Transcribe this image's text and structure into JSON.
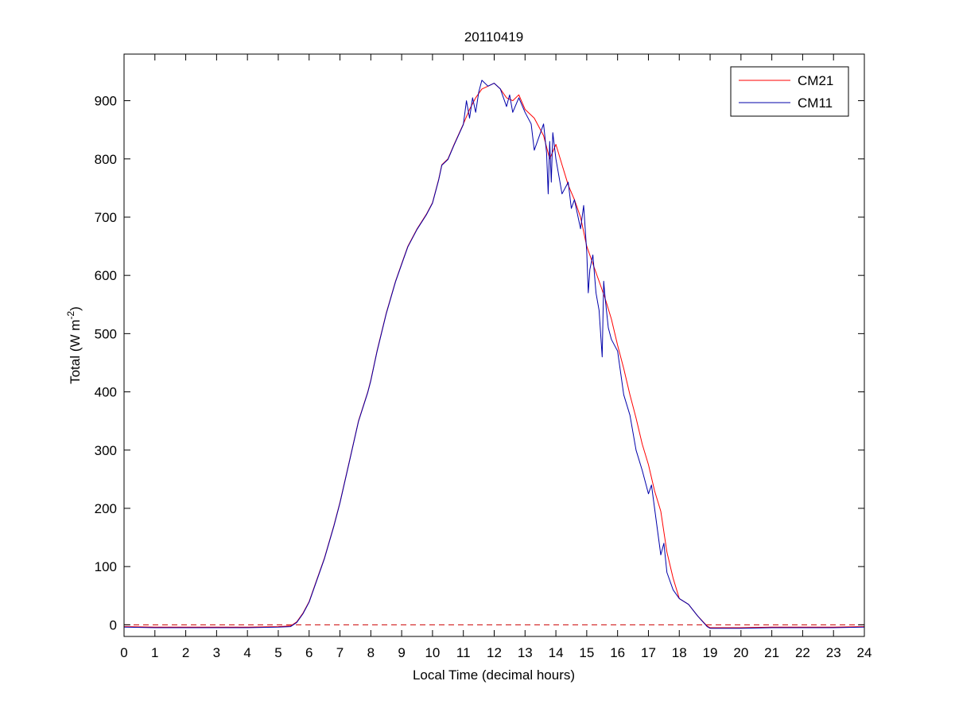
{
  "chart_data": {
    "type": "line",
    "title": "20110419",
    "xlabel": "Local Time (decimal hours)",
    "ylabel": {
      "main": "Total (W m",
      "superscript": "-2",
      "close": ")"
    },
    "xlim": [
      0,
      24
    ],
    "ylim": [
      -20,
      980
    ],
    "xticks": [
      0,
      1,
      2,
      3,
      4,
      5,
      6,
      7,
      8,
      9,
      10,
      11,
      12,
      13,
      14,
      15,
      16,
      17,
      18,
      19,
      20,
      21,
      22,
      23,
      24
    ],
    "yticks": [
      0,
      100,
      200,
      300,
      400,
      500,
      600,
      700,
      800,
      900
    ],
    "grid": false,
    "legend": {
      "position": "top-right",
      "entries": [
        "CM21",
        "CM11"
      ]
    },
    "reference_line": {
      "y": 0,
      "style": "dashed",
      "color": "#cc0000"
    },
    "series": [
      {
        "name": "CM21",
        "color": "#ff0000",
        "x": [
          0,
          1,
          2,
          3,
          4,
          5,
          5.4,
          5.6,
          5.8,
          6.0,
          6.2,
          6.5,
          6.8,
          7.0,
          7.3,
          7.6,
          7.9,
          8.0,
          8.2,
          8.5,
          8.8,
          9.0,
          9.2,
          9.5,
          9.8,
          10.0,
          10.2,
          10.3,
          10.5,
          10.7,
          11.0,
          11.2,
          11.4,
          11.6,
          11.8,
          12.0,
          12.2,
          12.4,
          12.6,
          12.8,
          13.0,
          13.3,
          13.6,
          13.8,
          14.0,
          14.2,
          14.4,
          14.6,
          14.8,
          15.0,
          15.2,
          15.4,
          15.6,
          15.8,
          16.0,
          16.2,
          16.4,
          16.6,
          16.8,
          17.0,
          17.2,
          17.4,
          17.6,
          17.8,
          18.0,
          18.3,
          18.6,
          18.9,
          19.0,
          20,
          21,
          22,
          23,
          24
        ],
        "values": [
          -3,
          -4,
          -4,
          -4,
          -4,
          -3,
          -2,
          5,
          20,
          40,
          70,
          115,
          170,
          210,
          280,
          350,
          400,
          420,
          470,
          535,
          590,
          620,
          650,
          680,
          705,
          725,
          765,
          790,
          800,
          825,
          860,
          885,
          905,
          920,
          925,
          930,
          920,
          905,
          900,
          910,
          885,
          870,
          840,
          800,
          825,
          790,
          755,
          730,
          700,
          650,
          620,
          590,
          560,
          525,
          480,
          440,
          395,
          355,
          310,
          275,
          230,
          195,
          125,
          80,
          45,
          35,
          15,
          -2,
          -5,
          -5,
          -4,
          -4,
          -4,
          -3
        ]
      },
      {
        "name": "CM11",
        "color": "#0000aa",
        "x": [
          0,
          1,
          2,
          3,
          4,
          5,
          5.4,
          5.6,
          5.8,
          6.0,
          6.2,
          6.5,
          6.8,
          7.0,
          7.3,
          7.6,
          7.9,
          8.0,
          8.2,
          8.5,
          8.8,
          9.0,
          9.2,
          9.5,
          9.8,
          10.0,
          10.2,
          10.3,
          10.5,
          10.7,
          11.0,
          11.1,
          11.2,
          11.3,
          11.4,
          11.5,
          11.6,
          11.8,
          12.0,
          12.2,
          12.4,
          12.5,
          12.6,
          12.8,
          13.0,
          13.2,
          13.3,
          13.6,
          13.7,
          13.75,
          13.8,
          13.85,
          13.9,
          14.0,
          14.2,
          14.4,
          14.5,
          14.6,
          14.8,
          14.9,
          15.0,
          15.05,
          15.1,
          15.2,
          15.3,
          15.4,
          15.5,
          15.55,
          15.6,
          15.7,
          15.8,
          16.0,
          16.2,
          16.4,
          16.6,
          16.8,
          17.0,
          17.1,
          17.2,
          17.4,
          17.5,
          17.6,
          17.8,
          18.0,
          18.3,
          18.6,
          18.9,
          19.0,
          20,
          21,
          22,
          23,
          24
        ],
        "values": [
          -4,
          -5,
          -5,
          -5,
          -5,
          -4,
          -3,
          4,
          19,
          39,
          69,
          114,
          169,
          209,
          279,
          349,
          399,
          419,
          469,
          534,
          589,
          619,
          649,
          679,
          704,
          724,
          764,
          789,
          799,
          824,
          859,
          900,
          870,
          905,
          880,
          915,
          935,
          925,
          930,
          920,
          890,
          910,
          880,
          905,
          880,
          860,
          815,
          860,
          810,
          740,
          830,
          760,
          845,
          800,
          740,
          760,
          715,
          730,
          680,
          720,
          640,
          570,
          610,
          635,
          570,
          540,
          460,
          590,
          560,
          510,
          490,
          470,
          395,
          360,
          300,
          265,
          225,
          240,
          200,
          120,
          140,
          90,
          60,
          45,
          35,
          15,
          -3,
          -6,
          -6,
          -5,
          -5,
          -5,
          -4
        ]
      }
    ]
  }
}
